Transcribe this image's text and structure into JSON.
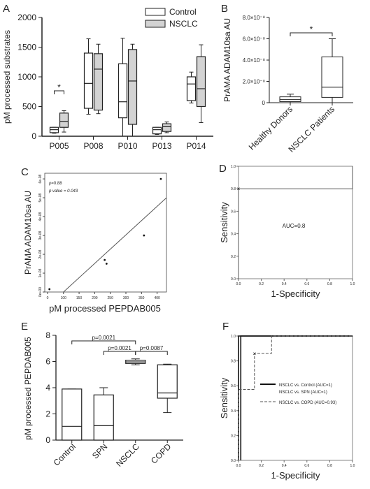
{
  "panel_letters": {
    "a": "A",
    "b": "B",
    "c": "C",
    "d": "D",
    "e": "E",
    "f": "F"
  },
  "chart_data": [
    {
      "panel": "A",
      "type": "box",
      "ylabel": "pM processed substrates",
      "ylim": [
        0,
        2000
      ],
      "yticks": [
        "0",
        "500",
        "1000",
        "1500",
        "2000"
      ],
      "categories": [
        "P005",
        "P008",
        "P010",
        "P013",
        "P014"
      ],
      "legend": {
        "placement": "top-right",
        "entries": [
          "Control",
          "NSCLC"
        ]
      },
      "series": [
        {
          "name": "Control",
          "color": "#ffffff",
          "boxes": [
            {
              "min": 50,
              "q1": 60,
              "median": 110,
              "q3": 150,
              "max": 150
            },
            {
              "min": 370,
              "q1": 470,
              "median": 890,
              "q3": 1400,
              "max": 1640
            },
            {
              "min": 0,
              "q1": 310,
              "median": 580,
              "q3": 1220,
              "max": 1650
            },
            {
              "min": 30,
              "q1": 40,
              "median": 110,
              "q3": 150,
              "max": 150
            },
            {
              "min": 560,
              "q1": 600,
              "median": 880,
              "q3": 1000,
              "max": 1080
            }
          ]
        },
        {
          "name": "NSCLC",
          "color": "#d3d3d3",
          "boxes": [
            {
              "min": 70,
              "q1": 150,
              "median": 250,
              "q3": 390,
              "max": 430
            },
            {
              "min": 380,
              "q1": 440,
              "median": 1130,
              "q3": 1390,
              "max": 1550
            },
            {
              "min": 0,
              "q1": 200,
              "median": 930,
              "q3": 1460,
              "max": 1550
            },
            {
              "min": 60,
              "q1": 80,
              "median": 160,
              "q3": 210,
              "max": 240
            },
            {
              "min": 230,
              "q1": 500,
              "median": 800,
              "q3": 1340,
              "max": 1540
            }
          ]
        }
      ],
      "annotations": [
        "*"
      ]
    },
    {
      "panel": "B",
      "type": "box",
      "ylabel": "PrAMA ADAM10sa AU",
      "ylim": [
        0,
        8e-08
      ],
      "yticks": [
        "0",
        "2.0×10⁻⁸",
        "4.0×10⁻⁸",
        "6.0×10⁻⁸",
        "8.0×10⁻⁸"
      ],
      "categories": [
        "Healthy Donors",
        "NSCLC Patients"
      ],
      "boxes": [
        {
          "min": 0,
          "q1": 1e-09,
          "median": 3e-09,
          "q3": 5.5e-09,
          "max": 8e-09
        },
        {
          "min": 0,
          "q1": 5e-09,
          "median": 1.45e-08,
          "q3": 4.3e-08,
          "max": 6e-08
        }
      ],
      "annotations": [
        "*"
      ]
    },
    {
      "panel": "C",
      "type": "scatter",
      "xlabel": "pM processed PEPDAB005",
      "ylabel": "PrAMA ADAM10sa AU",
      "xticks": [
        "0",
        "100",
        "150",
        "200",
        "250",
        "300",
        "350",
        "400"
      ],
      "yticks": [
        "0e+00",
        "1e-08",
        "2e-08",
        "3e-08",
        "4e-08",
        "5e-08",
        "6e-08"
      ],
      "xlim": [
        40,
        430
      ],
      "ylim": [
        0,
        6.3e-08
      ],
      "annotations": [
        "ρ=0.88",
        "p value = 0.043"
      ],
      "points": [
        {
          "x": 55,
          "y": 1.5e-09
        },
        {
          "x": 232,
          "y": 1.7e-08
        },
        {
          "x": 238,
          "y": 1.5e-08
        },
        {
          "x": 358,
          "y": 3e-08
        },
        {
          "x": 412,
          "y": 6e-08
        }
      ],
      "fit_line": [
        {
          "x": 100,
          "y": 0
        },
        {
          "x": 430,
          "y": 5e-08
        }
      ]
    },
    {
      "panel": "D",
      "type": "line",
      "xlabel": "1-Specificity",
      "ylabel": "Sensitivity",
      "xlim": [
        0,
        1
      ],
      "ylim": [
        0,
        1
      ],
      "xticks": [
        "0.0",
        "0.2",
        "0.4",
        "0.6",
        "0.8",
        "1.0"
      ],
      "yticks": [
        "0.0",
        "0.2",
        "0.4",
        "0.6",
        "0.8",
        "1.0"
      ],
      "annotations": [
        "AUC=0.8"
      ],
      "marker": {
        "x": 0.0,
        "y": 0.8
      },
      "series": [
        {
          "x": [
            0,
            0,
            1,
            1
          ],
          "y": [
            0,
            0.8,
            0.8,
            1.0
          ]
        }
      ]
    },
    {
      "panel": "E",
      "type": "box",
      "ylabel": "pM processed PEPDAB005",
      "ylim": [
        0,
        8
      ],
      "yticks": [
        "0",
        "2",
        "4",
        "6",
        "8"
      ],
      "categories": [
        "Control",
        "SPN",
        "NSCLC",
        "COPD"
      ],
      "boxes": [
        {
          "min": 0,
          "q1": 0,
          "median": 1.05,
          "q3": 3.9,
          "max": 3.9
        },
        {
          "min": 0,
          "q1": 0,
          "median": 1.1,
          "q3": 3.45,
          "max": 4.0
        },
        {
          "min": 5.75,
          "q1": 5.85,
          "median": 5.97,
          "q3": 6.1,
          "max": 6.2
        },
        {
          "min": 2.1,
          "q1": 3.2,
          "median": 3.6,
          "q3": 5.75,
          "max": 5.8
        }
      ],
      "annotations": [
        "p=0.0021",
        "p=0.0021",
        "p=0.0087"
      ]
    },
    {
      "panel": "F",
      "type": "line",
      "xlabel": "1-Specificity",
      "ylabel": "Sensitivity",
      "xlim": [
        0,
        1
      ],
      "ylim": [
        0,
        1
      ],
      "xticks": [
        "0.0",
        "0.2",
        "0.4",
        "0.6",
        "0.8",
        "1.0"
      ],
      "yticks": [
        "0.0",
        "0.2",
        "0.4",
        "0.6",
        "0.8",
        "1.0"
      ],
      "legend": {
        "placement": "right",
        "entries": [
          "NSCLC vs. Control (AUC=1)",
          "NSCLC vs. SPN (AUC=1)",
          "NSCLC vs. COPD (AUC=0.93)"
        ]
      },
      "marker": {
        "x": 0.14,
        "y": 0.86
      },
      "series": [
        {
          "name": "NSCLC vs. Control (AUC=1)",
          "x": [
            0,
            0,
            1
          ],
          "y": [
            0,
            1,
            1
          ]
        },
        {
          "name": "NSCLC vs. SPN (AUC=1)",
          "x": [
            0.02,
            0.02,
            1
          ],
          "y": [
            0,
            1,
            1
          ]
        },
        {
          "name": "NSCLC vs. COPD (AUC=0.93)",
          "x": [
            0,
            0,
            0.14,
            0.14,
            0.29,
            0.29,
            1
          ],
          "y": [
            0,
            0.57,
            0.57,
            0.86,
            0.86,
            1,
            1
          ]
        }
      ]
    }
  ]
}
